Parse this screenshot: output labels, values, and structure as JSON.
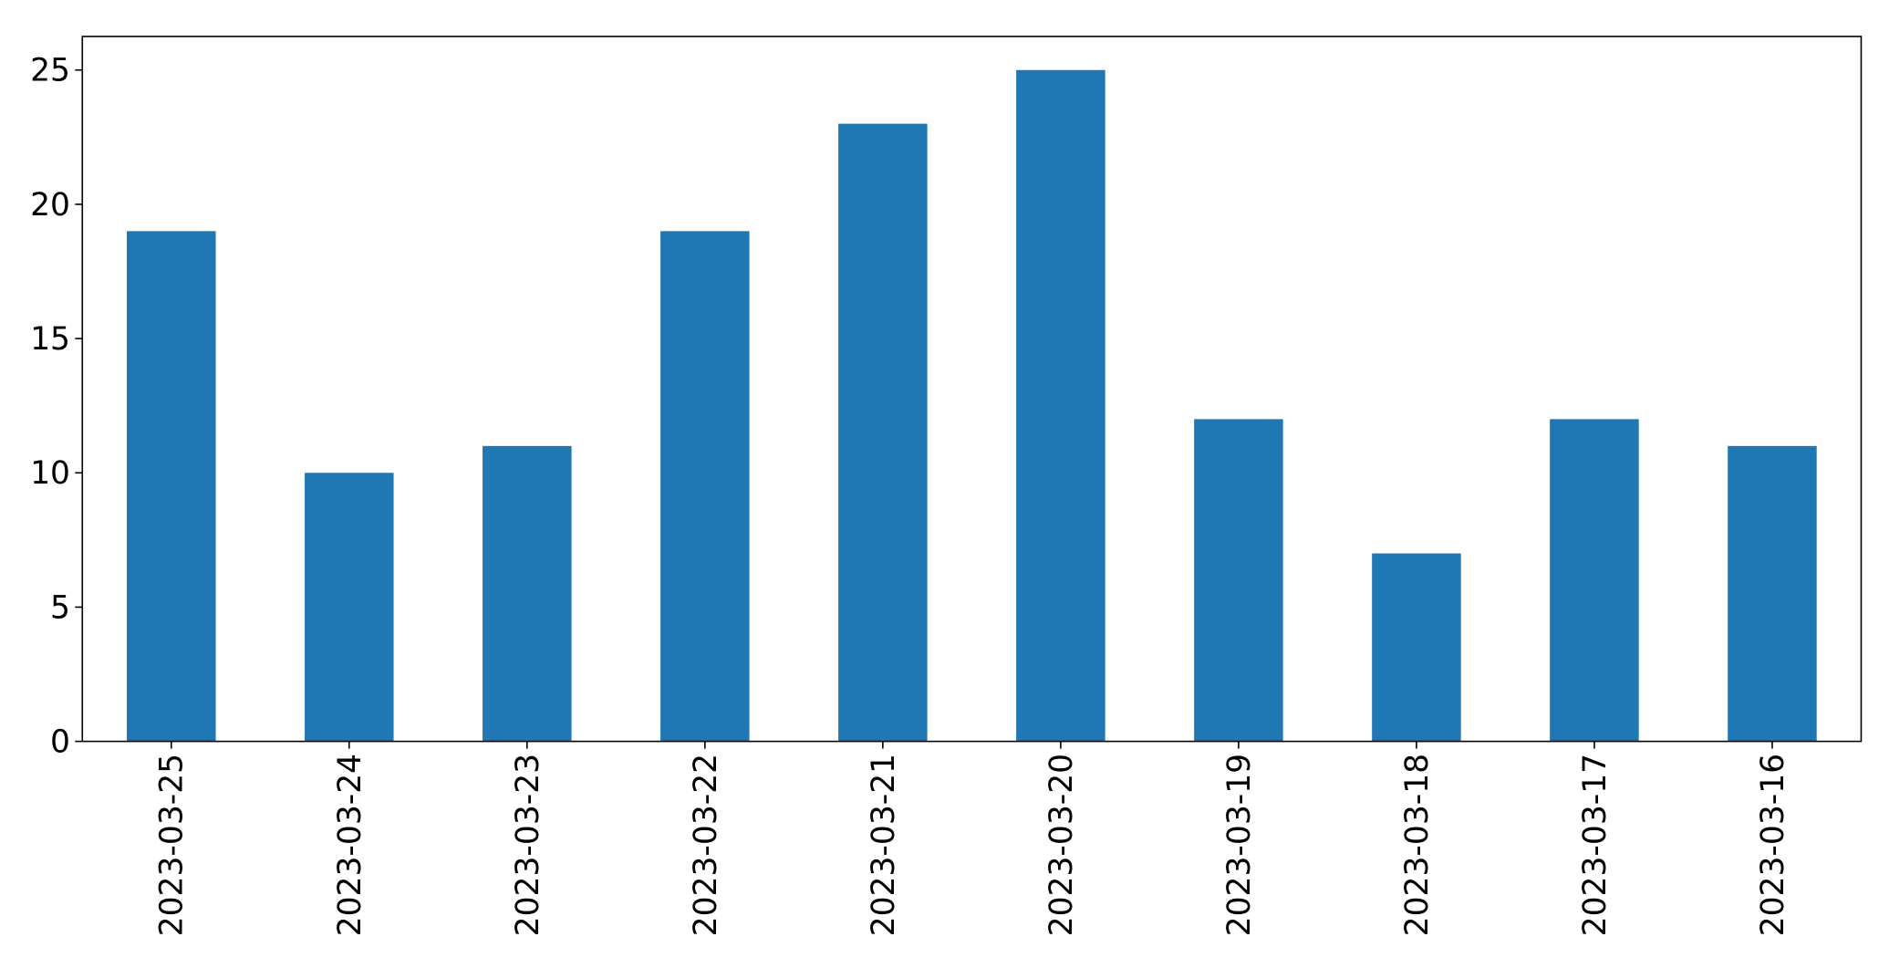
{
  "chart_data": {
    "type": "bar",
    "categories": [
      "2023-03-25",
      "2023-03-24",
      "2023-03-23",
      "2023-03-22",
      "2023-03-21",
      "2023-03-20",
      "2023-03-19",
      "2023-03-18",
      "2023-03-17",
      "2023-03-16"
    ],
    "values": [
      19,
      10,
      11,
      19,
      23,
      25,
      12,
      7,
      12,
      11
    ],
    "color": "#1f77b4",
    "ylim": [
      0,
      26.25
    ],
    "yticks": [
      0,
      5,
      10,
      15,
      20,
      25
    ],
    "grid": false
  }
}
